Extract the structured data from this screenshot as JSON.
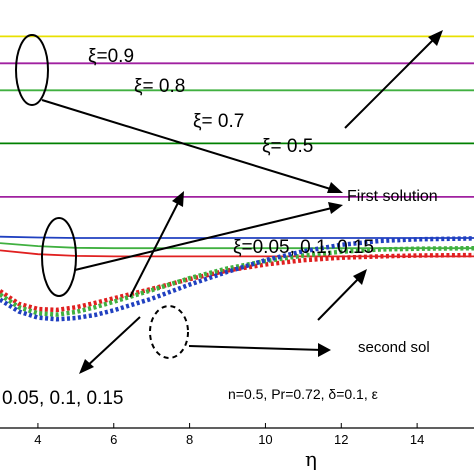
{
  "chart_data": {
    "type": "line",
    "xlabel": "η",
    "ylabel": "",
    "xlim": [
      3.0,
      15.5
    ],
    "ylim": [
      0.0,
      1.0
    ],
    "x_ticks": [
      4,
      6,
      8,
      10,
      12,
      14
    ],
    "grid": false,
    "series": [
      {
        "role": "first",
        "color": "#e8e000",
        "style": "solid",
        "x": [
          3.0,
          15.5
        ],
        "y": [
          0.915,
          0.915
        ]
      },
      {
        "role": "first",
        "color": "#a020a0",
        "style": "solid",
        "x": [
          3.0,
          15.5
        ],
        "y": [
          0.852,
          0.852
        ]
      },
      {
        "role": "first",
        "color": "#40b040",
        "style": "solid",
        "x": [
          3.0,
          15.5
        ],
        "y": [
          0.789,
          0.789
        ]
      },
      {
        "role": "first",
        "color": "#008000",
        "style": "solid",
        "x": [
          3.0,
          15.5
        ],
        "y": [
          0.665,
          0.665
        ]
      },
      {
        "role": "first",
        "color": "#a020a0",
        "style": "solid",
        "x": [
          3.0,
          15.5
        ],
        "y": [
          0.54,
          0.54
        ]
      },
      {
        "role": "first",
        "color": "#2040c0",
        "style": "solid",
        "x": [
          3.0,
          4.0,
          5.0,
          6.0,
          8.0,
          15.5
        ],
        "y": [
          0.447,
          0.445,
          0.444,
          0.444,
          0.444,
          0.444
        ]
      },
      {
        "role": "first",
        "color": "#40b040",
        "style": "solid",
        "x": [
          3.0,
          4.0,
          5.0,
          6.0,
          8.0,
          15.5
        ],
        "y": [
          0.432,
          0.425,
          0.421,
          0.42,
          0.42,
          0.42
        ]
      },
      {
        "role": "first",
        "color": "#e02020",
        "style": "solid",
        "x": [
          3.0,
          4.0,
          5.0,
          6.0,
          8.0,
          15.5
        ],
        "y": [
          0.415,
          0.406,
          0.402,
          0.401,
          0.401,
          0.401
        ]
      },
      {
        "role": "second",
        "color": "#e02020",
        "style": "dotted",
        "x": [
          3.0,
          3.5,
          4.0,
          4.5,
          5.0,
          5.5,
          6.0,
          7.0,
          8.0,
          9.0,
          10.0,
          11.0,
          12.0,
          13.0,
          14.0,
          15.5
        ],
        "y": [
          0.32,
          0.29,
          0.278,
          0.276,
          0.282,
          0.292,
          0.303,
          0.325,
          0.348,
          0.368,
          0.382,
          0.392,
          0.398,
          0.401,
          0.403,
          0.404
        ]
      },
      {
        "role": "second",
        "color": "#40b040",
        "style": "dotted",
        "x": [
          3.0,
          3.5,
          4.0,
          4.5,
          5.0,
          5.5,
          6.0,
          7.0,
          8.0,
          9.0,
          10.0,
          11.0,
          12.0,
          13.0,
          14.0,
          15.5
        ],
        "y": [
          0.312,
          0.282,
          0.268,
          0.265,
          0.271,
          0.282,
          0.295,
          0.322,
          0.35,
          0.373,
          0.39,
          0.403,
          0.412,
          0.417,
          0.419,
          0.42
        ]
      },
      {
        "role": "second",
        "color": "#2040c0",
        "style": "dotted",
        "x": [
          3.0,
          3.5,
          4.0,
          4.5,
          5.0,
          5.5,
          6.0,
          7.0,
          8.0,
          9.0,
          10.0,
          11.0,
          12.0,
          13.0,
          14.0,
          15.5
        ],
        "y": [
          0.3,
          0.272,
          0.258,
          0.254,
          0.257,
          0.264,
          0.275,
          0.302,
          0.335,
          0.365,
          0.392,
          0.413,
          0.428,
          0.437,
          0.441,
          0.443
        ]
      }
    ],
    "annotations": [
      {
        "key": "xi_09",
        "text": "ξ=0.9"
      },
      {
        "key": "xi_08",
        "text": "ξ= 0.8"
      },
      {
        "key": "xi_07",
        "text": "ξ= 0.7"
      },
      {
        "key": "xi_05",
        "text": "ξ= 0.5"
      },
      {
        "key": "first_solution",
        "text": "First solution"
      },
      {
        "key": "xi_small",
        "text": "ξ=0.05, 0.1, 0.15"
      },
      {
        "key": "second_solution",
        "text": "second sol"
      },
      {
        "key": "xi_small_second",
        "text": "0.05, 0.1, 0.15"
      },
      {
        "key": "params",
        "text": "n=0.5, Pr=0.72, δ=0.1, ε"
      }
    ]
  }
}
